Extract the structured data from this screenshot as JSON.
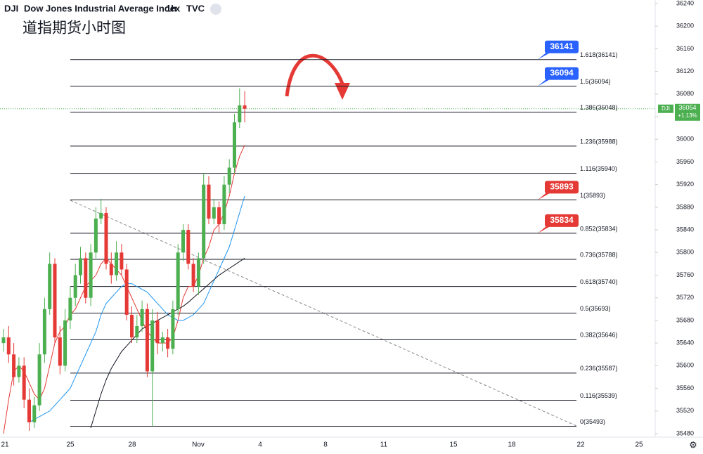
{
  "header": {
    "symbol": "DJI",
    "name": "Dow Jones Industrial Average Index",
    "interval": "1h",
    "source": "TVC"
  },
  "title": "道指期货小时图",
  "chart_data": {
    "type": "candlestick",
    "open": [
      35640,
      35650,
      35620,
      35580,
      35600,
      35540,
      35500,
      35530,
      35620,
      35700,
      35780,
      35650,
      35600,
      35680,
      35720,
      35760,
      35790,
      35720,
      35800,
      35860,
      35870,
      35780,
      35760,
      35800,
      35770,
      35690,
      35650,
      35670,
      35700,
      35590,
      35680,
      35640,
      35650,
      35630,
      35700,
      35800,
      35840,
      35780,
      35740,
      35790,
      35920,
      35860,
      35880,
      35850,
      35920,
      35950,
      36030,
      36060
    ],
    "high": [
      35665,
      35670,
      35640,
      35615,
      35615,
      35560,
      35545,
      35640,
      35720,
      35800,
      35790,
      35670,
      35700,
      35740,
      35780,
      35810,
      35800,
      35815,
      35880,
      35895,
      35880,
      35800,
      35820,
      35815,
      35780,
      35705,
      35690,
      35715,
      35710,
      35700,
      35695,
      35660,
      35665,
      35715,
      35815,
      35850,
      35850,
      35790,
      35800,
      35940,
      35935,
      35895,
      35890,
      35935,
      35965,
      36045,
      36090,
      36085
    ],
    "low": [
      35625,
      35605,
      35565,
      35570,
      35525,
      35485,
      35490,
      35520,
      35605,
      35690,
      35640,
      35585,
      35590,
      35665,
      35705,
      35745,
      35710,
      35705,
      35790,
      35850,
      35770,
      35745,
      35750,
      35760,
      35680,
      35640,
      35640,
      35660,
      35580,
      35493,
      35620,
      35625,
      35615,
      35620,
      35690,
      35785,
      35770,
      35730,
      35725,
      35780,
      35850,
      35850,
      35835,
      35840,
      35905,
      35940,
      36020,
      36030
    ],
    "close": [
      35650,
      35620,
      35580,
      35600,
      35540,
      35500,
      35530,
      35620,
      35700,
      35780,
      35650,
      35600,
      35680,
      35720,
      35760,
      35790,
      35720,
      35800,
      35860,
      35870,
      35780,
      35760,
      35800,
      35770,
      35690,
      35650,
      35670,
      35700,
      35590,
      35680,
      35640,
      35650,
      35630,
      35700,
      35800,
      35840,
      35780,
      35740,
      35790,
      35920,
      35860,
      35880,
      35850,
      35920,
      35950,
      36030,
      36060,
      36054
    ],
    "up_color": "#4caf50",
    "down_color": "#e53935",
    "series": [
      {
        "color": "#e53935",
        "values": [
          35480,
          35540,
          35590,
          35600,
          35590,
          35570,
          35550,
          35540,
          35560,
          35600,
          35640,
          35660,
          35670,
          35690,
          35700,
          35720,
          35740,
          35750,
          35760,
          35780,
          35790,
          35780,
          35770,
          35760,
          35740,
          35720,
          35700,
          35680,
          35660,
          35650,
          35640,
          35640,
          35640,
          35650,
          35680,
          35720,
          35740,
          35740,
          35760,
          35790,
          35810,
          35840,
          35850,
          35870,
          35900,
          35940,
          35970,
          35990
        ]
      },
      {
        "color": "#2196f3",
        "values": [
          null,
          null,
          null,
          null,
          null,
          35500,
          35505,
          35510,
          35515,
          35520,
          35530,
          35540,
          35550,
          35560,
          35580,
          35600,
          35620,
          35640,
          35660,
          35690,
          35710,
          35720,
          35730,
          35740,
          35745,
          35745,
          35740,
          35735,
          35730,
          35720,
          35710,
          35700,
          35690,
          35685,
          35680,
          35680,
          35685,
          35690,
          35700,
          35710,
          35730,
          35750,
          35770,
          35790,
          35810,
          35840,
          35870,
          35900
        ]
      },
      {
        "color": "#131722",
        "values": [
          null,
          null,
          null,
          null,
          null,
          null,
          null,
          null,
          null,
          null,
          null,
          null,
          null,
          null,
          null,
          null,
          null,
          35490,
          35520,
          35550,
          35575,
          35595,
          35610,
          35625,
          35635,
          35645,
          35655,
          35665,
          35670,
          35675,
          35680,
          35685,
          35690,
          35695,
          35700,
          35705,
          35712,
          35720,
          35728,
          35736,
          35744,
          35752,
          35760,
          35766,
          35772,
          35778,
          35784,
          35790
        ]
      }
    ],
    "fib_levels": [
      {
        "value": 36141,
        "label": "1.618(36141)"
      },
      {
        "value": 36094,
        "label": "1.5(36094)"
      },
      {
        "value": 36048,
        "label": "1.386(36048)"
      },
      {
        "value": 35988,
        "label": "1.236(35988)"
      },
      {
        "value": 35940,
        "label": "1.116(35940)"
      },
      {
        "value": 35893,
        "label": "1(35893)"
      },
      {
        "value": 35834,
        "label": "0.852(35834)"
      },
      {
        "value": 35788,
        "label": "0.736(35788)"
      },
      {
        "value": 35740,
        "label": "0.618(35740)"
      },
      {
        "value": 35693,
        "label": "0.5(35693)"
      },
      {
        "value": 35646,
        "label": "0.382(35646)"
      },
      {
        "value": 35587,
        "label": "0.236(35587)"
      },
      {
        "value": 35539,
        "label": "0.116(35539)"
      },
      {
        "value": 35493,
        "label": "0(35493)"
      }
    ],
    "price_tags": [
      {
        "value": 36141,
        "color": "#2962ff"
      },
      {
        "value": 36094,
        "color": "#2962ff"
      },
      {
        "value": 35893,
        "color": "#e53935"
      },
      {
        "value": 35834,
        "color": "#e53935"
      }
    ],
    "last_price": {
      "value": 36054,
      "change": "+1.13%",
      "symbol": "DJI",
      "color": "#4caf50"
    },
    "x_labels": [
      "21",
      "25",
      "28",
      "Nov",
      "4",
      "8",
      "11",
      "15",
      "18",
      "22",
      "25"
    ],
    "ylim": [
      35480,
      36240
    ],
    "yticks": [
      35480,
      35520,
      35560,
      35600,
      35640,
      35680,
      35720,
      35760,
      35800,
      35840,
      35880,
      35920,
      35960,
      36000,
      36040,
      36080,
      36120,
      36160,
      36200,
      36240
    ]
  }
}
